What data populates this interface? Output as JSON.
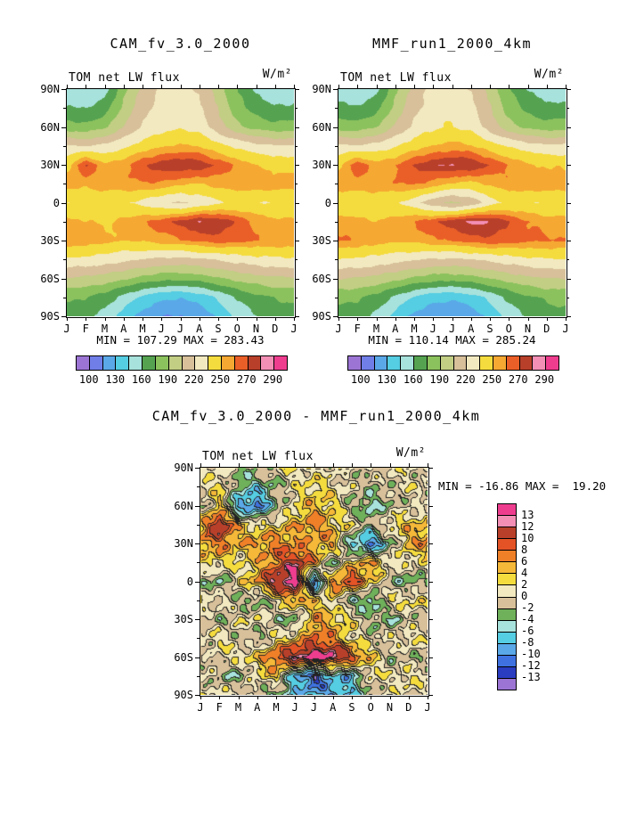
{
  "figure": {
    "background": "#ffffff",
    "text_color": "#000000"
  },
  "panels": {
    "cam": {
      "title": "CAM_fv_3.0_2000",
      "flux_label": "TOM net LW flux",
      "units_label": "W/m²",
      "stats": "MIN = 107.29 MAX = 283.43"
    },
    "mmf": {
      "title": "MMF_run1_2000_4km",
      "flux_label": "TOM net LW flux",
      "units_label": "W/m²",
      "stats": "MIN = 110.14 MAX = 285.24"
    },
    "diff": {
      "title": "CAM_fv_3.0_2000 - MMF_run1_2000_4km",
      "flux_label": "TOM net LW flux",
      "units_label": "W/m²",
      "stats": "MIN = -16.86 MAX =  19.20"
    }
  },
  "chart_data": [
    {
      "panel": "cam",
      "type": "heatmap",
      "title": "CAM_fv_3.0_2000",
      "subtitle": "TOM net LW flux",
      "units": "W/m²",
      "min": 107.29,
      "max": 283.43,
      "x_ticks": [
        "J",
        "F",
        "M",
        "A",
        "M",
        "J",
        "J",
        "A",
        "S",
        "O",
        "N",
        "D",
        "J"
      ],
      "y_ticks": [
        "90N",
        "60N",
        "30N",
        "0",
        "30S",
        "60S",
        "90S"
      ],
      "lat": [
        90,
        75,
        60,
        45,
        30,
        15,
        0,
        -15,
        -30,
        -45,
        -60,
        -75,
        -90
      ],
      "levels": [
        100,
        115,
        130,
        145,
        160,
        175,
        190,
        205,
        220,
        235,
        250,
        260,
        270,
        280,
        290
      ],
      "colors": [
        "#9c75d4",
        "#707ee8",
        "#5aa8e8",
        "#55cde2",
        "#a8e2dc",
        "#55a351",
        "#8cc25e",
        "#c2ce84",
        "#d7c09a",
        "#f2e9c0",
        "#f5dc3e",
        "#f5a832",
        "#ea5f28",
        "#b8402a",
        "#f38fb5",
        "#ee3d8f"
      ],
      "colorbar": {
        "orientation": "horizontal",
        "labels": [
          "100",
          "130",
          "160",
          "190",
          "220",
          "250",
          "270",
          "290"
        ],
        "positions": [
          1,
          3,
          5,
          7,
          9,
          11,
          13,
          15
        ]
      },
      "values": [
        [
          150,
          148,
          155,
          185,
          210,
          222,
          226,
          218,
          198,
          175,
          158,
          150,
          150
        ],
        [
          162,
          160,
          168,
          195,
          215,
          226,
          230,
          224,
          204,
          182,
          168,
          162,
          162
        ],
        [
          182,
          180,
          188,
          206,
          222,
          230,
          234,
          229,
          212,
          195,
          185,
          181,
          182
        ],
        [
          222,
          220,
          224,
          232,
          242,
          248,
          252,
          250,
          240,
          232,
          226,
          222,
          222
        ],
        [
          246,
          272,
          252,
          258,
          269,
          276,
          279,
          277,
          268,
          258,
          250,
          246,
          246
        ],
        [
          256,
          253,
          255,
          257,
          260,
          258,
          252,
          250,
          254,
          258,
          257,
          256,
          256
        ],
        [
          236,
          238,
          241,
          239,
          230,
          222,
          218,
          224,
          232,
          238,
          236,
          235,
          236
        ],
        [
          253,
          251,
          248,
          252,
          259,
          266,
          273,
          281,
          279,
          268,
          258,
          254,
          253
        ],
        [
          259,
          257,
          253,
          250,
          252,
          256,
          259,
          263,
          266,
          263,
          261,
          259,
          259
        ],
        [
          233,
          231,
          228,
          224,
          220,
          217,
          216,
          218,
          222,
          226,
          230,
          232,
          233
        ],
        [
          204,
          202,
          199,
          193,
          186,
          181,
          180,
          183,
          189,
          195,
          200,
          203,
          204
        ],
        [
          178,
          176,
          168,
          155,
          142,
          133,
          131,
          136,
          148,
          162,
          171,
          176,
          178
        ],
        [
          168,
          165,
          154,
          138,
          124,
          116,
          114,
          119,
          133,
          149,
          160,
          166,
          168
        ]
      ]
    },
    {
      "panel": "mmf",
      "type": "heatmap",
      "title": "MMF_run1_2000_4km",
      "subtitle": "TOM net LW flux",
      "units": "W/m²",
      "min": 110.14,
      "max": 285.24,
      "x_ticks": [
        "J",
        "F",
        "M",
        "A",
        "M",
        "J",
        "J",
        "A",
        "S",
        "O",
        "N",
        "D",
        "J"
      ],
      "y_ticks": [
        "90N",
        "60N",
        "30N",
        "0",
        "30S",
        "60S",
        "90S"
      ],
      "lat": [
        90,
        75,
        60,
        45,
        30,
        15,
        0,
        -15,
        -30,
        -45,
        -60,
        -75,
        -90
      ],
      "levels": [
        100,
        115,
        130,
        145,
        160,
        175,
        190,
        205,
        220,
        235,
        250,
        260,
        270,
        280,
        290
      ],
      "colors": [
        "#9c75d4",
        "#707ee8",
        "#5aa8e8",
        "#55cde2",
        "#a8e2dc",
        "#55a351",
        "#8cc25e",
        "#c2ce84",
        "#d7c09a",
        "#f2e9c0",
        "#f5dc3e",
        "#f5a832",
        "#ea5f28",
        "#b8402a",
        "#f38fb5",
        "#ee3d8f"
      ],
      "colorbar": {
        "orientation": "horizontal",
        "labels": [
          "100",
          "130",
          "160",
          "190",
          "220",
          "250",
          "270",
          "290"
        ],
        "positions": [
          1,
          3,
          5,
          7,
          9,
          11,
          13,
          15
        ]
      },
      "values": [
        [
          152,
          150,
          157,
          186,
          212,
          224,
          228,
          220,
          200,
          177,
          160,
          152,
          152
        ],
        [
          164,
          162,
          170,
          196,
          216,
          228,
          232,
          226,
          206,
          184,
          170,
          164,
          164
        ],
        [
          184,
          182,
          190,
          208,
          224,
          232,
          236,
          231,
          214,
          197,
          187,
          183,
          184
        ],
        [
          224,
          222,
          226,
          234,
          244,
          250,
          254,
          252,
          242,
          234,
          228,
          224,
          224
        ],
        [
          248,
          268,
          255,
          260,
          271,
          278,
          281,
          279,
          270,
          260,
          252,
          248,
          248
        ],
        [
          258,
          255,
          257,
          259,
          262,
          256,
          248,
          246,
          252,
          258,
          258,
          257,
          258
        ],
        [
          238,
          240,
          242,
          238,
          226,
          210,
          202,
          210,
          228,
          238,
          237,
          236,
          238
        ],
        [
          255,
          253,
          250,
          254,
          261,
          268,
          275,
          283,
          281,
          270,
          260,
          256,
          255
        ],
        [
          261,
          259,
          255,
          252,
          254,
          258,
          261,
          265,
          268,
          265,
          263,
          261,
          261
        ],
        [
          235,
          233,
          230,
          226,
          222,
          219,
          218,
          220,
          224,
          228,
          232,
          234,
          235
        ],
        [
          206,
          204,
          201,
          195,
          188,
          183,
          182,
          185,
          191,
          197,
          202,
          205,
          206
        ],
        [
          180,
          178,
          170,
          157,
          144,
          135,
          133,
          138,
          150,
          164,
          173,
          178,
          180
        ],
        [
          170,
          167,
          156,
          140,
          126,
          118,
          116,
          121,
          135,
          151,
          162,
          168,
          170
        ]
      ]
    },
    {
      "panel": "diff",
      "type": "heatmap",
      "title": "CAM_fv_3.0_2000 - MMF_run1_2000_4km",
      "subtitle": "TOM net LW flux",
      "units": "W/m²",
      "min": -16.86,
      "max": 19.2,
      "x_ticks": [
        "J",
        "F",
        "M",
        "A",
        "M",
        "J",
        "J",
        "A",
        "S",
        "O",
        "N",
        "D",
        "J"
      ],
      "y_ticks": [
        "90N",
        "60N",
        "30N",
        "0",
        "30S",
        "60S",
        "90S"
      ],
      "lat": [
        90,
        75,
        60,
        45,
        30,
        15,
        0,
        -15,
        -30,
        -45,
        -60,
        -75,
        -90
      ],
      "levels": [
        -13,
        -12,
        -10,
        -8,
        -6,
        -4,
        -2,
        0,
        2,
        4,
        6,
        8,
        10,
        12,
        13
      ],
      "colors": [
        "#9c75d4",
        "#2a3cc0",
        "#3f72e0",
        "#5aa8e8",
        "#55cde2",
        "#a8e2dc",
        "#6fb05a",
        "#d7c09a",
        "#f2e9c0",
        "#f5dc3e",
        "#f5b838",
        "#f08028",
        "#e45326",
        "#b8402a",
        "#f38fb5",
        "#ee3d8f"
      ],
      "colorbar": {
        "orientation": "vertical",
        "labels": [
          "13",
          "12",
          "10",
          "8",
          "6",
          "4",
          "2",
          "0",
          "-2",
          "-4",
          "-6",
          "-8",
          "-10",
          "-12",
          "-13"
        ],
        "positions": [
          1,
          2,
          3,
          4,
          5,
          6,
          7,
          8,
          9,
          10,
          11,
          12,
          13,
          14,
          15
        ]
      },
      "values": [
        [
          0,
          1,
          -2,
          -1,
          0,
          2,
          1,
          0,
          -1,
          0,
          1,
          0,
          0
        ],
        [
          1,
          3,
          -4,
          -6,
          -2,
          1,
          3,
          2,
          0,
          -2,
          -1,
          1,
          1
        ],
        [
          -2,
          4,
          -9,
          -11,
          -3,
          2,
          5,
          3,
          -2,
          -5,
          -2,
          0,
          -2
        ],
        [
          5,
          14,
          4,
          2,
          3,
          5,
          7,
          4,
          2,
          -3,
          3,
          4,
          5
        ],
        [
          6,
          7,
          5,
          6,
          7,
          6,
          5,
          6,
          -7,
          -11,
          -4,
          5,
          6
        ],
        [
          2,
          3,
          1,
          4,
          8,
          12,
          6,
          -4,
          4,
          6,
          2,
          1,
          2
        ],
        [
          -2,
          -4,
          2,
          6,
          13,
          15,
          -12,
          8,
          10,
          4,
          -2,
          -4,
          -2
        ],
        [
          2,
          1,
          -2,
          -4,
          2,
          6,
          4,
          2,
          -4,
          -6,
          2,
          3,
          2
        ],
        [
          -1,
          -2,
          1,
          2,
          -2,
          -4,
          6,
          4,
          2,
          -2,
          -4,
          -1,
          -1
        ],
        [
          1,
          2,
          -1,
          -3,
          2,
          4,
          8,
          6,
          2,
          -1,
          1,
          2,
          1
        ],
        [
          -2,
          1,
          2,
          4,
          9,
          14,
          15,
          14,
          10,
          4,
          -2,
          -1,
          -2
        ],
        [
          1,
          -2,
          -4,
          2,
          4,
          -9,
          -13,
          -6,
          -8,
          2,
          1,
          2,
          1
        ],
        [
          0,
          1,
          2,
          -2,
          -4,
          -6,
          -8,
          -10,
          -6,
          -2,
          0,
          1,
          0
        ]
      ]
    }
  ]
}
